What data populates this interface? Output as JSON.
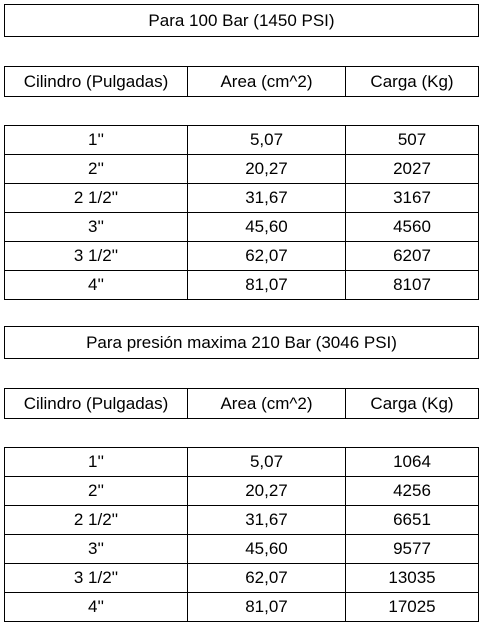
{
  "sections": [
    {
      "title": "Para 100 Bar (1450 PSI)",
      "header": [
        "Cilindro (Pulgadas)",
        "Area (cm^2)",
        "Carga (Kg)"
      ],
      "rows": [
        [
          "1''",
          "5,07",
          "507"
        ],
        [
          "2''",
          "20,27",
          "2027"
        ],
        [
          "2 1/2''",
          "31,67",
          "3167"
        ],
        [
          "3''",
          "45,60",
          "4560"
        ],
        [
          "3 1/2''",
          "62,07",
          "6207"
        ],
        [
          "4''",
          "81,07",
          "8107"
        ]
      ]
    },
    {
      "title": "Para presión maxima 210 Bar (3046 PSI)",
      "header": [
        "Cilindro (Pulgadas)",
        "Area (cm^2)",
        "Carga (Kg)"
      ],
      "rows": [
        [
          "1''",
          "5,07",
          "1064"
        ],
        [
          "2''",
          "20,27",
          "4256"
        ],
        [
          "2 1/2''",
          "31,67",
          "6651"
        ],
        [
          "3''",
          "45,60",
          "9577"
        ],
        [
          "3 1/2''",
          "62,07",
          "13035"
        ],
        [
          "4''",
          "81,07",
          "17025"
        ]
      ]
    }
  ]
}
